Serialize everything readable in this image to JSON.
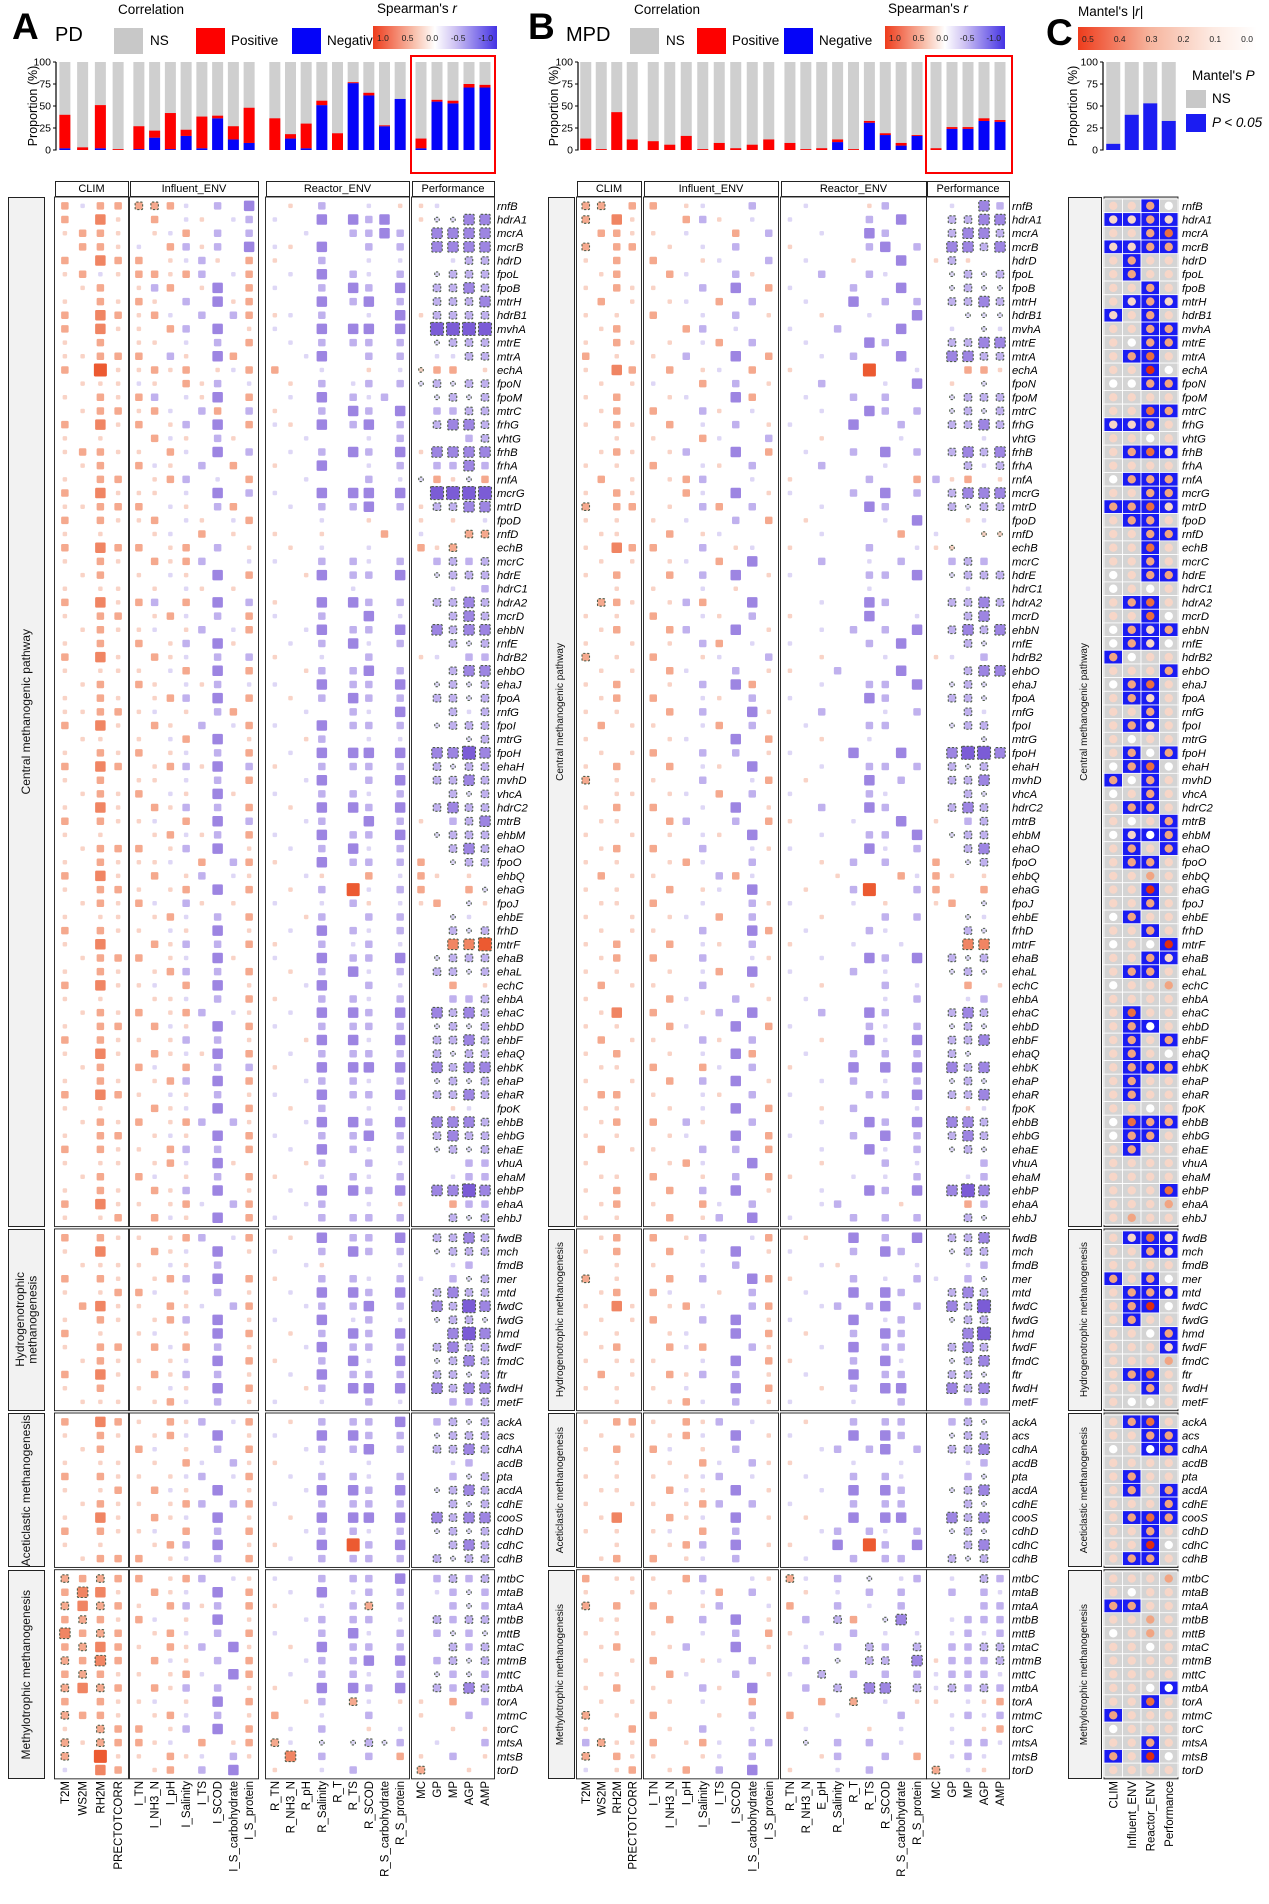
{
  "panels": {
    "A": {
      "letter": "A",
      "subtitle": "PD"
    },
    "B": {
      "letter": "B",
      "subtitle": "MPD"
    },
    "C": {
      "letter": "C"
    }
  },
  "legends": {
    "correlation": {
      "title": "Correlation",
      "items": [
        {
          "label": "NS",
          "color": "#c8c8c8"
        },
        {
          "label": "Positive",
          "color": "#fd0100"
        },
        {
          "label": "Negative",
          "color": "#0504f8"
        }
      ]
    },
    "spearman": {
      "title_main": "Spearman's",
      "title_sym": "r",
      "ticks": [
        "1.0",
        "0.5",
        "0.0",
        "-0.5",
        "-1.0"
      ]
    },
    "mantel_r": {
      "title_main": "Mantel's",
      "title_sym": "|r|",
      "ticks": [
        "0.5",
        "0.4",
        "0.3",
        "0.2",
        "0.1",
        "0.0"
      ]
    },
    "mantel_p": {
      "title_main": "Mantel's",
      "title_sym": "P",
      "items": [
        {
          "label": "NS",
          "color": "#c8c8c8"
        },
        {
          "label": "P < 0.05",
          "color": "#1b1cf2"
        }
      ]
    }
  },
  "axis": {
    "ylabel": "Proportion (%)",
    "ticks": [
      100,
      75,
      50,
      25,
      0
    ]
  },
  "col_groups": [
    {
      "label": "CLIM",
      "cols": 4
    },
    {
      "label": "Influent_ENV",
      "cols": 8
    },
    {
      "label": "Reactor_ENV",
      "cols": 9
    },
    {
      "label": "Performance",
      "cols": 5
    }
  ],
  "columns": {
    "A": [
      "T2M",
      "WS2M",
      "RH2M",
      "PRECTOTCORR",
      "I_TN",
      "I_NH3_N",
      "I_pH",
      "I_Salinity",
      "I_TS",
      "I_SCOD",
      "I_S_carbohydrate",
      "I_S_protein",
      "R_TN",
      "R_NH3_N",
      "R_pH",
      "R_Salinity",
      "R_T",
      "R_TS",
      "R_SCOD",
      "R_S_carbohydrate",
      "R_S_protein",
      "MC",
      "GP",
      "MP",
      "AGP",
      "AMP"
    ],
    "B": [
      "T2M",
      "WS2M",
      "RH2M",
      "PRECTOTCORR",
      "I_TN",
      "I_NH3_N",
      "I_pH",
      "I_Salinity",
      "I_TS",
      "I_SCOD",
      "I_S_carbohydrate",
      "I_S_protein",
      "R_TN",
      "R_NH3_N",
      "E_pH",
      "R_Salinity",
      "R_T",
      "R_TS",
      "R_SCOD",
      "R_S_carbohydrate",
      "R_S_protein",
      "MC",
      "GP",
      "MP",
      "AGP",
      "AMP"
    ],
    "C_bottom": [
      "CLIM",
      "Influent_ENV",
      "Reactor_ENV",
      "Performance"
    ]
  },
  "row_groups": [
    {
      "label": "Central methanogenic pathway",
      "count": 75
    },
    {
      "label": "Hydrogenotrophic methanogenesis",
      "count": 13
    },
    {
      "label": "Aceticlastic methanogenesis",
      "count": 11
    },
    {
      "label": "Methylotrophic methanogenesis",
      "count": 15
    }
  ],
  "genes": [
    "rnfB",
    "hdrA1",
    "mcrA",
    "mcrB",
    "hdrD",
    "fpoL",
    "fpoB",
    "mtrH",
    "hdrB1",
    "mvhA",
    "mtrE",
    "mtrA",
    "echA",
    "fpoN",
    "fpoM",
    "mtrC",
    "frhG",
    "vhtG",
    "frhB",
    "frhA",
    "rnfA",
    "mcrG",
    "mtrD",
    "fpoD",
    "rnfD",
    "echB",
    "mcrC",
    "hdrE",
    "hdrC1",
    "hdrA2",
    "mcrD",
    "ehbN",
    "rnfE",
    "hdrB2",
    "ehbO",
    "ehaJ",
    "fpoA",
    "rnfG",
    "fpoI",
    "mtrG",
    "fpoH",
    "ehaH",
    "mvhD",
    "vhcA",
    "hdrC2",
    "mtrB",
    "ehbM",
    "ehaO",
    "fpoO",
    "ehbQ",
    "ehaG",
    "fpoJ",
    "ehbE",
    "frhD",
    "mtrF",
    "ehaB",
    "ehaL",
    "echC",
    "ehbA",
    "ehaC",
    "ehbD",
    "ehbF",
    "ehaQ",
    "ehbK",
    "ehaP",
    "ehaR",
    "fpoK",
    "ehbB",
    "ehbG",
    "ehaE",
    "vhuA",
    "ehaM",
    "ehbP",
    "ehaA",
    "ehbJ",
    "fwdB",
    "mch",
    "fmdB",
    "mer",
    "mtd",
    "fwdC",
    "fwdG",
    "hmd",
    "fwdF",
    "fmdC",
    "ftr",
    "fwdH",
    "metF",
    "ackA",
    "acs",
    "cdhA",
    "acdB",
    "pta",
    "acdA",
    "cdhE",
    "cooS",
    "cdhD",
    "cdhC",
    "cdhB",
    "mtbC",
    "mtaB",
    "mtaA",
    "mtbB",
    "mttB",
    "mtaC",
    "mtmB",
    "mttC",
    "mtbA",
    "torA",
    "mtmC",
    "torC",
    "mtsA",
    "mtsB",
    "torD"
  ],
  "chart_data": {
    "bars_A": {
      "type": "bar",
      "stacked": true,
      "ylim": [
        0,
        100
      ],
      "categories": "columns.A",
      "series": [
        {
          "name": "Positive",
          "color": "#fd0100",
          "values": [
            38,
            3,
            49,
            1,
            26,
            8,
            41,
            7,
            36,
            3,
            15,
            40,
            36,
            5,
            28,
            5,
            19,
            1,
            3,
            1,
            0,
            11,
            2,
            3,
            4,
            3
          ]
        },
        {
          "name": "Negative",
          "color": "#0504f8",
          "values": [
            2,
            0,
            2,
            0,
            1,
            14,
            1,
            16,
            2,
            36,
            12,
            8,
            0,
            13,
            2,
            51,
            0,
            76,
            62,
            27,
            58,
            2,
            55,
            53,
            71,
            71
          ]
        }
      ]
    },
    "bars_B": {
      "type": "bar",
      "stacked": true,
      "ylim": [
        0,
        100
      ],
      "categories": "columns.B",
      "series": [
        {
          "name": "Positive",
          "color": "#fd0100",
          "values": [
            13,
            1,
            43,
            12,
            10,
            6,
            16,
            1,
            8,
            2,
            6,
            12,
            8,
            1,
            2,
            3,
            1,
            2,
            2,
            3,
            1,
            2,
            2,
            2,
            3,
            2
          ]
        },
        {
          "name": "Negative",
          "color": "#0504f8",
          "values": [
            0,
            0,
            0,
            0,
            0,
            0,
            0,
            0,
            0,
            0,
            0,
            0,
            0,
            0,
            0,
            9,
            0,
            31,
            17,
            5,
            16,
            0,
            24,
            24,
            33,
            32
          ]
        }
      ]
    },
    "bars_C": {
      "type": "bar",
      "ylim": [
        0,
        100
      ],
      "categories": [
        "CLIM",
        "Influent_ENV",
        "Reactor_ENV",
        "Performance"
      ],
      "series": [
        {
          "name": "P < 0.05",
          "color": "#1b1cf2",
          "values": [
            7,
            40,
            53,
            33
          ]
        }
      ]
    },
    "heatmap_encoding": "per row one char per column; '.'=none; '1'-'4'=positive r small->large; '5'-'8'=positive significant; 'a'-'d'=negative r small->large; 'e'-'h'=negative significant; panel C: '0'-'4'=NS tile with Mantel r dot shade white->red, 'a'-'e'=P<0.05 blue tile with dot shade",
    "heatmap_A": [
      "2a22662a.b.c.1.b..a.11a...",
      "2.31.2.a1.aba..c.cbc.1eegg",
      "1221.1a2.b.b..a..bbcb.gggg",
      ".221a.2b1b.ca1.c..b.b.gggg",
      "2.322.1ab1.21..b..a.a..aff",
      "12a12212b.a2.a.c.ba.b.efff",
      ".12.1b2.1c.2a..b.cb.c.ffgf",
      "1.2121.b.c12...c.bc.b.fffg",
      "2.3212a.b.b21a.b..a.c1ffff",
      "2.311.2b.c.1a..c.cc.c.hhhh",
      "1.2.11.a.b.2.a.b.bb.b.efff",
      "11222.b1.c2...ac..b.b.aaff",
      "2.411212.1a22..a..1.a522.1",
      ".111a1.21b.a.1.b.ab.befeff",
      "1.212b.a1c.2.a.c.bab..efef",
      ".12212a.b2.b1..b.cb.c.bbff",
      "2.312.1b.c.2a1.c.bc.b.fggf",
      "1.1..2a1.b1...a...a.b...bf",
      "12211.2a.c.b.a.b.cb.c1gggg",
      ".12.2a1.b.2.1..c..a.b.bbgb",
      "1.22.12b.a.2..a...b.ae21e2",
      "2.3111.a.c.ba..c.cc.c.hhhh",
      "11222.a1.b2..a.b.bc.b1ffgg",
      "2.2112.a1.a2...a..1..1.1.a",
      "1.1..1a.2.1.1..1...2.a..66",
      "2.322.12.b.1.1.a..a..216..",
      "1.21.212b..aa..b.ba.b.bfbf",
      ".12.1.a1.c.2..1c.bb.c.efff",
      "1.11.1.a1.1......a.....a.b",
      "2.312b.2.c.b1..c.cb.b.ffgf",
      "1.22.12a.b.2a..b..c.a..fgf",
      ".1211a.1b.a2..ac.bb.c.gfgg",
      "1.2.2.1b.c1..a.b.ca.b..fef",
      "2.31.21a.b.b1..a..b..1a.bb",
      "1.111.a2.c.2..1b.bc.b..fgg",
      ".12.21.a1b.aa..c.bb.c.efef",
      "1.21.12b.c.2.1.b.cb.b.ffef",
      "11221a.1.b2...a..ba.c..faf",
      "2.31.21.b.a2a..c.bb.b.efff",
      ".11.1.a2.c.1..1b..a.a...ef",
      "1.212.1a.b.2.a.c.cc.c.gghg",
      "2.32.12b1c.b1..b.bb.b.feff",
      "1.2.11.a.b.2..ac..b.c.ffgf",
      ".1212.a1.c1.a..b.ba.b..fef",
      "1.31.21b.b.2.1.c.cb.c.fgff",
      "2.211a.2.c.b..ab..c.b1.bfg",
      "1.1..12a1b.2a..c.bb.c.efff",
      ".1222.1b.c.1.a.b.ca.b..fgf",
      "1.2111a.2.b21..c.bb.b2.eff",
      "2.31.2.1b.a1..a1..2.a21.1.",
      "1.221.12.c.2.1.b.4a.b2..2e",
      ".1212a.b1.1.a..a.b1.a12.e1",
      "1.11.12a.b.2..1b..b.b..ea.",
      "2.211.a1.c.1.a.c.ba.b..fef",
      "1.3..21b.b.21..b.ab.a..778",
      ".1222.1a.c1.a..c.bb.c.efff",
      "1.21.12b.b.2.1.b.ca.b.ffef",
      "2.311a.2.c.1..ac..b.a..2.1",
      "1.1..11a.b.21..b.ba.b..bbf",
      ".1212.12b.a1.a.c.cb.c.gfgf",
      "1.22.2a1.c.2a..b.bb.b.efef",
      "2.211.1b.b.1..1c.ca.c.ffgf",
      "1.31.21a1c.2.a.b.bb.b.feff",
      ".12.2a.2.b.b1..c.cc.c.gfgg",
      "1.21.12b.c.2..ab.ba.b.efef",
      "2.321.a1.b.1a..c.bb.c.ffgf",
      "1.1..21a.c.2.1.b..a.a..1a.",
      ".1212.12b.b1..ac.cb.c.gggf",
      "1.22.1a1.c.2a..b.bc.b.fgff",
      "2.211.2b.b.2.a.c.ba.b.efef",
      "1.11.12a.c1...1b..b.a...bb",
      ".12.2a.1.b.21..a.ba.b..abb",
      "1.21.21b.c.1.a.c.cb.c.gghg",
      "2.311.12a.b2..ab..a.1..2bb",
      "1.12.2a1.c.2a..b.bb.b..fef",
      "2.211.12b.a2.1.c.bb.c.ffgf",
      "1.3..21a.c.1a..b.cb.b.efff",
      ".1111.a1.b....a1....a..ab.",
      "2.21.12b.c.21..b.ba.ba.bef",
      "1.122a.1.b.1.a.c.cb.c.fgff",
      ".2311.21a.b2..ab.bc.b.gfhg",
      "1.21.12b.c.1a..c.ab.a.effe",
      "2.1.1a.1.c.2.1.b.cb.c..ghg",
      "1.22.2a2.b.1..ac.bb.b.fgff",
      ".1211.1a.c.21..b.ca.c.efgf",
      "2.31.21b.b.1.a.c.bb.b.ffef",
      "1.2.1.a1.c.2..1b.cc.c.gfgg",
      ".111.12a.b.1a..a..b.a..bbf",
      "2.321.21b.a2.1.b.bb.c.bfef",
      "1.21.12a.c.1a..c.cb.b.efff",
      ".12.2a.1.b.2..ab.bc.b.ffgf",
      "1.11.1.2a.b11..a..a....ab.",
      "2.211.1ab.a2.a.b.ba.b..bef",
      "1.12.2a1.c.1..ac.cb.c.efgf",
      ".1211.12b.b2a..b.bb.b..fef",
      "1.31.21a.c.1.1.c.cc.c.gfgg",
      "2.211a.2.b.2..ab.ba.b.efef",
      "1.1..12b.c.11..c.4b.c..fgf",
      ".1222.1a.b.2.a.b.bb.b.feff",
      "62622.12b.a1a..b.bb.c.bfbf",
      "2731.21a.c.2.a.c.ab.b.abeb",
      "63621.2b1b.21..a.b6.b..beb",
      "26212a.1.c.1..ab.bb.a.fbff",
      "7262.12a.b.2a..b.ca.b.bebe",
      "26321.21b.c1.1.c.bb.b..fbf",
      "6272.2a1.b.2..ab.bc.c.bfef",
      "26211.12a.c2.a.b.ba.b.ebeb",
      "6362.21b.b.11..c.cb.c.fbgf",
      "2.211a.1.c.2..1b.6a.11.2.b",
      "6221.12a.b.12..a..b..1..b.",
      "1.622.1b.c.2.a.b..1.a..1.1",
      "616221a.2.126a.e.efeb.a..b",
      "6.411.21a.b1.7.b..b.21.b.1",
      "a.32.12.b.c.1..a.b...6..1."
    ],
    "heatmap_B": [
      "66.22.1a..b..a...1b...a.gb",
      "6.31..2b1.a.a....b.c..ffgg",
      ".2211.a..2.b..a..cb...fggf",
      "6.22.1.a.b..1....bc.b.ggfg",
      "1.2.2..1a..b.a..1..c.1f1..",
      ".12..2a..b1...b..ba...efef",
      "1.211..b.c.2a...b..c..efee",
      ".2.1.1a.2.b..a..c.b.b.ffgf",
      "1.1.2..a.b.1..1..a..c..eee",
      ".12...2b.a..a..b...c..a.ea",
      "1.21.1.a2.b..a...cb...ffgg",
      "2.1.1.b..c.2..a.b..c..ggff",
      "1.32.2.1a.2.1....4..a..221",
      ".1.1a..2.b.1..b...a.c.1.e.",
      "1.2..1a..c2..a..b.b...efff",
      ".12.2..b1.a...a..cb.b.efef",
      "1.21.2.a.b.1a...c..b..ffgf",
      "..1.1..2a..b..1....a....a.",
      ".121.1b..c.2.a..b.c.b.fgfg",
      "1.1.2..a1.b...b...a....faf",
      ".2.1.12b..a.1....b..2b12.1",
      "1.21..2a.c.1a...b.c.b.fggg",
      "6.22.1.b2.b...a..cb...feff",
      "1.1.1.a..b.2.1....a.c..1a.",
      ".11..2.1a.....a....2.a..55",
      "1.322..b.1a.1....b..a15...",
      ".1.1.1a.2.c...b..a.b..bfb.",
      "1.2..2.b.c.1a....bb.c.efff",
      "..1.1..a.1.......a.....a..",
      ".621.1b2..c...a..cb...ffgf",
      "1.1.2..a1.b.1....c..a..fg.",
      ".12..2b..c.1..a.b.b.c.fgfg",
      "1..1.1.b2.a.a....b.c...fe.",
      "6.1.2..1a..b..1...a..1a.b.",
      ".1.1.2a..b.11..b...c...fgg",
      "1.2..1.b.c2...a..bb.c.efe.",
      ".12.2..a1.b.a....cb...ffe.",
      "1.1..2.b..c1..b...a.b..fa.",
      ".2.11..a2.b..a...bb...eff.",
      "1....1a..c.2..1..a......e.",
      ".1.12..b.b.1a...c..c..ghhg",
      "1.2..2.a1.c...a..bb.b.fef.",
      "6.1.1..b..a2.1...c.b..ffg.",
      "..11.1a.2.b.a....ba....fe.",
      "1.2.2..a.c.1..b..cb...fgf.",
      ".11..2b..b.21...a..c.1.bf.",
      "1..1.1.a1.c...a..bb.c.eff.",
      ".12.2..b..a1a....ca.b..fg.",
      "1.1..12a..b...1.b.b..2.ef.",
      ".2.11...b2a....1...2a21.1.",
      "1.1..2.1a.c..1..b4..b2..2.",
      ".11.2..a..b1a...a.1..12.e.",
      "1..1.1a.2.b...1...b.b..ea.",
      ".1.11..b..c2.a...ba....fe.",
      "1.2..2.a1.b.1...a..a...77.",
      ".12.2..b..a1..a..cb.c.fef.",
      "1.1..1.a2.c.a...b.a...efe.",
      ".2.11..b..1...1...b.a..2.1",
      "1....2a..b.1.a....a.b..ab.",
      ".13.2..1b.c...b..cb...fgf.",
      "1.1..2a..c.2a....ba.b.efe.",
      ".2.11..b1.b...1..ca.c.ffg.",
      "1.2..1.a.c2..a..b.b.b.fe..",
      ".11.2..2a.b.1...c.c.c.gfg.",
      "1..1.2.b.c.1..a.b.a.b.efe.",
      ".22.1..a1.b.a....bb.c.ffg.",
      "1.1..1.a.c.2..1.b...a..1a.",
      ".12.2.b1..b...a..cb.c.ggf.",
      "1.1..1a..c.2a...b.c.b.fgf.",
      ".2.11..b.b.2..a..ca.b.efe.",
      "1....12a..c...1...b.a...b.",
      ".11.2..1.b.21...a.a.b..ab.",
      "1.2..2.b.c.1..a..cb.c.ghg.",
      ".12.1..2a.b...ab...1...2b.",
      "1.1..2.1b.c.a...b.b.b..fe.",
      ".12.2.1b..a2.1..c.b.c.ffg.",
      "1.2..2.a.c.1a...b.cb..eff.",
      "..1.1..a.b....a1....a..ab.",
      "6.1..2.b..c21...b.a.ba.be.",
      ".12.2a..1.b..a..c.cb..fgf.",
      "1.31.12a..b2..ab.bc.b.gfh.",
      ".1.12..b.c.1a...c.ab..eff.",
      "1.1..1a..c.2.1..b.cb...gh.",
      ".12..2a2..b1..a.c.bb..fgf.",
      "1.111..a.c.21...b.ca..efg.",
      ".2.1.21b.b.1.a..c.bb..ffe.",
      "1.1.1.a..c.2..1.b.cc..gfg.",
      "..1..12a.b.1a...a..b...bb.",
      "1.221.21b.a..1..b.bb..bfe.",
      ".1.1.12a.c.1a...c.cb..eff.",
      "1.2.2a.1.b....ab.bc.b.ffg.",
      "..1..1.2a.b11...a..a...ab.",
      "1.1.1.1ab.a..a..b.ba...be.",
      ".11..2a1.c.1..a.c.cb..efg.",
      "1..11.12b.b.a...b.bb...fe.",
      ".13..21a.c.1.1..c.cc..gfg.",
      "1.1.1a.2.b....ab.ba.b.efe.",
      "..1..12b.c.11..c.4b.c..fg.",
      ".12.2.1a.b...a..b.bb..fef.",
      "2.111.2b..a16a.b.e.ab.a.fb",
      "1..1.1.a2.b..1.a.b.b..b.ba",
      "6.2.2..1b..a2..b.a.b....bb",
      ".11..2.b.c.1.b.f2.eg..abbb",
      "1.1.1..a.b.21.a.b.a.a.abab",
      ".12..1b..c.1.a.b.fb.f.bbff",
      "1..12..1a.b..b.e.ff.g1bbbf",
      ".11..2a..b.1a.f.b.b.babbba",
      "1.2.1..b1.c..b.f.gg.fafbfb",
      ".1.1.1.a..2...2.6.a.11.a12",
      "6.1.2...1.b.2..a...b..abab",
      "1..2.1.b..a..a...1.a..a.12",
      "b6112.12a.bb.e.b.b.a..abba",
      "6.211..1a.b...1b..b.2.aba.",
      "a.12.12.b.c.1..a.b...6.a1."
    ],
    "heatmap_C": [
      "11c0",
      "bbcb",
      "11cd",
      "bbcc",
      "1c11",
      "1c11",
      "11c1",
      "1bcb",
      "b1c1",
      "11cc",
      "10cc",
      "1cd1",
      "11e0",
      "00cc",
      "1111",
      "11dc",
      "bbc1",
      "1101",
      "1cdb",
      "1111",
      "0ccc",
      "11cc",
      "ccdb",
      "1cc1",
      "11cc",
      "11d1",
      "11c1",
      "01cc",
      "0101",
      "1cd1",
      "11d0",
      "0cbc",
      "0cb0",
      "c011",
      "111c",
      "0cd1",
      "1cb1",
      "11c1",
      "1cb1",
      "1011",
      "1c0c",
      "0cd0",
      "c0c1",
      "01c1",
      "1cc1",
      "101c",
      "0bac",
      "1c1c",
      "1cc1",
      "1121",
      "11e1",
      "11c1",
      "0c11",
      "11c1",
      "010e",
      "11cb",
      "1cc1",
      "0112",
      "1111",
      "1d11",
      "1ca1",
      "1c1c",
      "1c10",
      "1ccc",
      "1c11",
      "1c11",
      "1101",
      "0dcc",
      "0cc1",
      "1c11",
      "1111",
      "1111",
      "111d",
      "1112",
      "1211",
      "1bdb",
      "11cb",
      "1111",
      "c1c0",
      "1ccb",
      "1ce0",
      "1c11",
      "110c",
      "111b",
      "1112",
      "1cd1",
      "11c1",
      "1001",
      "1cd1",
      "11cc",
      "01ac",
      "1111",
      "1c11",
      "1c1c",
      "111c",
      "1cdc",
      "11c1",
      "11e0",
      "1cc1",
      "1112",
      "1011",
      "cc11",
      "1121",
      "0121",
      "1101",
      "1111",
      "1111",
      "110a",
      "11d1",
      "c111",
      "0111",
      "11c1",
      "c1e0",
      "1111"
    ]
  }
}
